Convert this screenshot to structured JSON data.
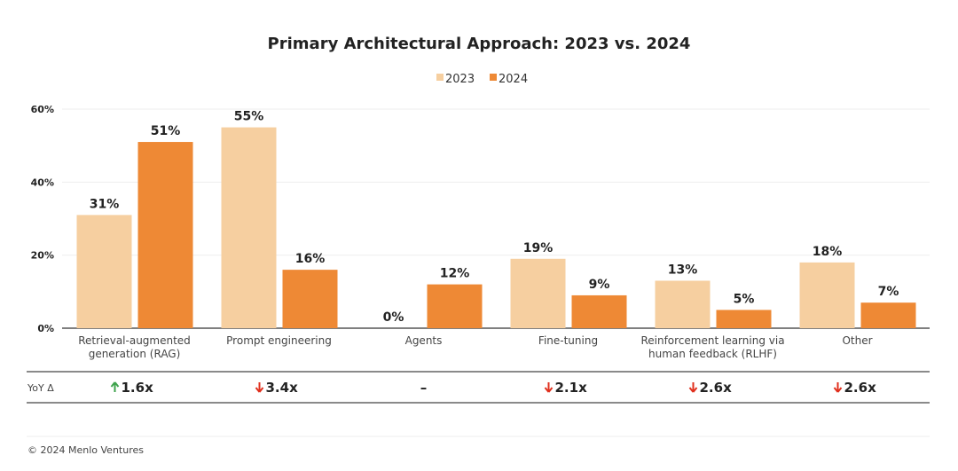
{
  "chart_data": {
    "type": "bar",
    "title": "Primary Architectural Approach: 2023 vs. 2024",
    "categories": [
      [
        "Retrieval-augmented",
        "generation (RAG)"
      ],
      [
        "Prompt engineering"
      ],
      [
        "Agents"
      ],
      [
        "Fine-tuning"
      ],
      [
        "Reinforcement learning via",
        "human feedback (RLHF)"
      ],
      [
        "Other"
      ]
    ],
    "series": [
      {
        "name": "2023",
        "color": "#f6cfa0",
        "values": [
          31,
          55,
          0,
          19,
          13,
          18
        ]
      },
      {
        "name": "2024",
        "color": "#ee8935",
        "values": [
          51,
          16,
          12,
          9,
          5,
          7
        ]
      }
    ],
    "ylim": [
      0,
      60
    ],
    "yticks": [
      0,
      20,
      40,
      60
    ],
    "ytick_labels": [
      "0%",
      "20%",
      "40%",
      "60%"
    ],
    "value_suffix": "%",
    "grid": true,
    "legend": "top-center",
    "yoy": {
      "label": "YoY Δ",
      "values": [
        {
          "dir": "up",
          "text": "1.6x"
        },
        {
          "dir": "down",
          "text": "3.4x"
        },
        {
          "dir": "none",
          "text": "–"
        },
        {
          "dir": "down",
          "text": "2.1x"
        },
        {
          "dir": "down",
          "text": "2.6x"
        },
        {
          "dir": "down",
          "text": "2.6x"
        }
      ],
      "up_color": "#3fa34d",
      "down_color": "#e0301e"
    }
  },
  "footer": "© 2024 Menlo Ventures"
}
